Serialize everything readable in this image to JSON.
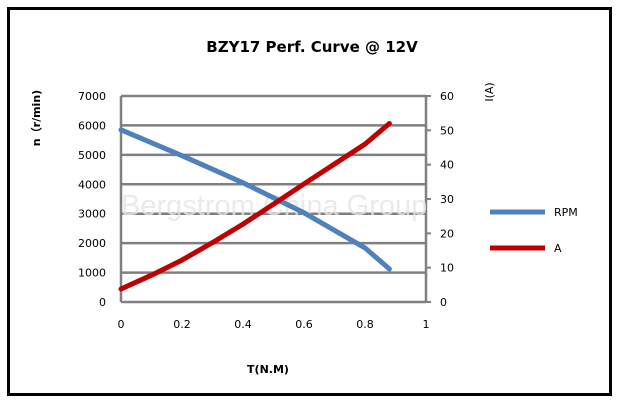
{
  "chart_data": {
    "type": "line",
    "title": "BZY17 Perf.  Curve @ 12V",
    "xlabel": "T(N.M)",
    "ylabel": "n（r/min)",
    "y2label": "I(A)",
    "watermark": "Bergstrom China Group",
    "xlim": [
      0,
      1
    ],
    "ylim": [
      0,
      7000
    ],
    "y2lim": [
      0,
      60
    ],
    "xticks": [
      "0",
      "0.2",
      "0.4",
      "0.6",
      "0.8",
      "1"
    ],
    "yticks": [
      "0",
      "1000",
      "2000",
      "3000",
      "4000",
      "5000",
      "6000",
      "7000"
    ],
    "y2ticks": [
      "0",
      "10",
      "20",
      "30",
      "40",
      "50",
      "60"
    ],
    "grid": true,
    "legend_position": "right",
    "series": [
      {
        "name": "RPM",
        "axis": "left",
        "color": "#4f81bd",
        "x": [
          0,
          0.2,
          0.4,
          0.6,
          0.8,
          0.88
        ],
        "y": [
          5850,
          4970,
          4050,
          3030,
          1840,
          1120
        ]
      },
      {
        "name": "A",
        "axis": "right",
        "color": "#c00000",
        "x": [
          0,
          0.1,
          0.2,
          0.3,
          0.4,
          0.5,
          0.6,
          0.7,
          0.8,
          0.88
        ],
        "y": [
          3.8,
          7.8,
          12.2,
          17.3,
          22.7,
          28.5,
          34.4,
          40.2,
          46,
          52
        ]
      }
    ]
  }
}
